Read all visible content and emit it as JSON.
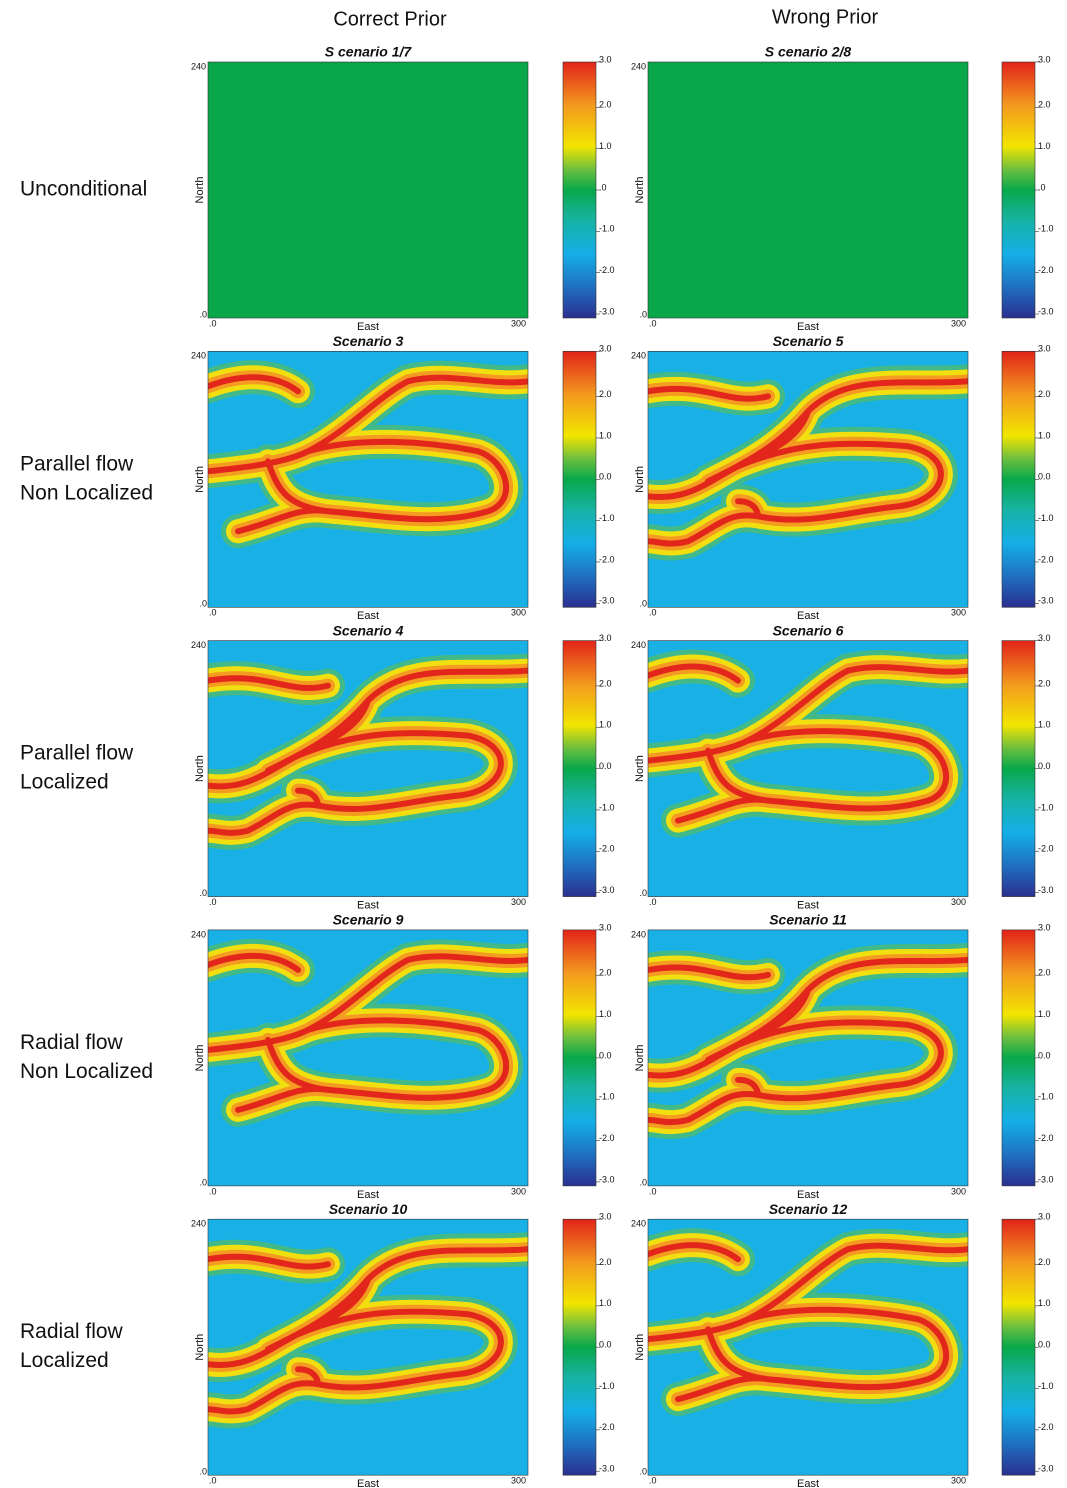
{
  "columns": [
    "Correct Prior",
    "Wrong Prior"
  ],
  "rows": [
    {
      "label": [
        "Unconditional"
      ],
      "panels": [
        {
          "title": "S cenario  1/7"
        },
        {
          "title": "S cenario  2/8"
        }
      ],
      "colorbar_ticks": [
        "3.0",
        "2.0",
        "1.0",
        ".0",
        "-1.0",
        "-2.0",
        "-3.0"
      ]
    },
    {
      "label": [
        "Parallel flow",
        "Non Localized"
      ],
      "panels": [
        {
          "title": "Scenario 3"
        },
        {
          "title": "Scenario 5"
        }
      ],
      "colorbar_ticks": [
        "3.0",
        "2.0",
        "1.0",
        "0.0",
        "-1.0",
        "-2.0",
        "-3.0"
      ]
    },
    {
      "label": [
        "Parallel flow",
        "Localized"
      ],
      "panels": [
        {
          "title": "Scenario 4"
        },
        {
          "title": "Scenario 6"
        }
      ],
      "colorbar_ticks": [
        "3.0",
        "2.0",
        "1.0",
        "0.0",
        "-1.0",
        "-2.0",
        "-3.0"
      ]
    },
    {
      "label": [
        "Radial flow",
        "Non Localized"
      ],
      "panels": [
        {
          "title": "Scenario 9"
        },
        {
          "title": "Scenario  11"
        }
      ],
      "colorbar_ticks": [
        "3.0",
        "2.0",
        "1.0",
        "0.0",
        "-1.0",
        "-2.0",
        "-3.0"
      ]
    },
    {
      "label": [
        "Radial flow",
        "Localized"
      ],
      "panels": [
        {
          "title": "Scenario  10"
        },
        {
          "title": "Scenario  12"
        }
      ],
      "colorbar_ticks": [
        "3.0",
        "2.0",
        "1.0",
        "0.0",
        "-1.0",
        "-2.0",
        "-3.0"
      ]
    }
  ],
  "axes": {
    "x_label": "East",
    "y_label": "North",
    "x_ticks": [
      ".0",
      "300"
    ],
    "y_ticks": [
      "240",
      ".0"
    ]
  }
}
